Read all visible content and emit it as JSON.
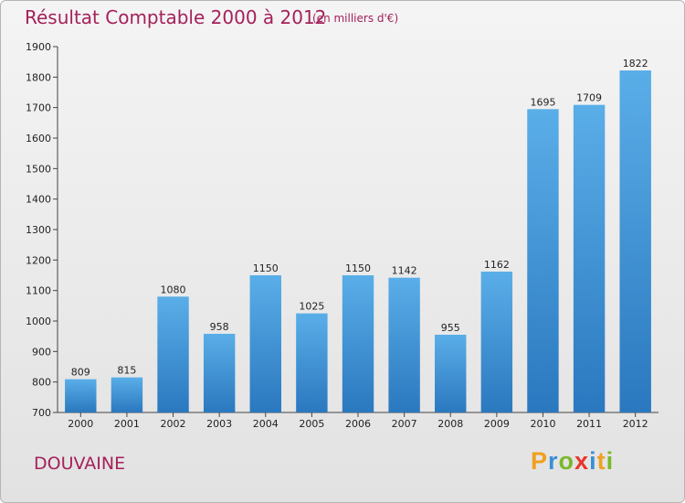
{
  "chart_data": {
    "type": "bar",
    "title": "Résultat Comptable 2000 à 2012",
    "subtitle": "(en milliers d'€)",
    "categories": [
      "2000",
      "2001",
      "2002",
      "2003",
      "2004",
      "2005",
      "2006",
      "2007",
      "2008",
      "2009",
      "2010",
      "2011",
      "2012"
    ],
    "values": [
      809,
      815,
      1080,
      958,
      1150,
      1025,
      1150,
      1142,
      955,
      1162,
      1695,
      1709,
      1822
    ],
    "ylim": [
      700,
      1900
    ],
    "yticks": [
      700,
      800,
      900,
      1000,
      1100,
      1200,
      1300,
      1400,
      1500,
      1600,
      1700,
      1800,
      1900
    ],
    "xlabel": "",
    "ylabel": "",
    "grid": false,
    "bar_color": "#3a8fd6"
  },
  "footer": {
    "commune": "DOUVAINE",
    "logo_letters": [
      "P",
      "r",
      "o",
      "x",
      "i",
      "t",
      "i"
    ],
    "logo_colors": [
      "#f0a020",
      "#3a8fd6",
      "#7ab829",
      "#e8352a",
      "#3a8fd6",
      "#f0a020",
      "#7ab829"
    ]
  }
}
